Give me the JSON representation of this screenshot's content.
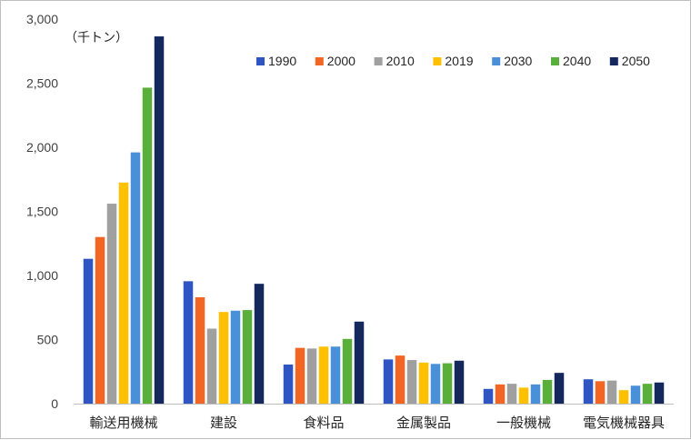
{
  "chart_data": {
    "type": "bar",
    "unit_label": "（千トン）",
    "categories": [
      "輸送用機械",
      "建設",
      "食料品",
      "金属製品",
      "一般機械",
      "電気機械器具"
    ],
    "series": [
      {
        "name": "1990",
        "color": "#2f55c2",
        "values": [
          1130,
          955,
          305,
          345,
          115,
          190
        ]
      },
      {
        "name": "2000",
        "color": "#f26522",
        "values": [
          1300,
          830,
          435,
          375,
          150,
          175
        ]
      },
      {
        "name": "2010",
        "color": "#a0a0a0",
        "values": [
          1560,
          585,
          430,
          340,
          155,
          180
        ]
      },
      {
        "name": "2019",
        "color": "#ffc000",
        "values": [
          1725,
          715,
          445,
          320,
          125,
          105
        ]
      },
      {
        "name": "2030",
        "color": "#4a90d9",
        "values": [
          1960,
          725,
          445,
          310,
          150,
          140
        ]
      },
      {
        "name": "2040",
        "color": "#5aae3a",
        "values": [
          2465,
          730,
          505,
          315,
          185,
          155
        ]
      },
      {
        "name": "2050",
        "color": "#14285e",
        "values": [
          2865,
          935,
          640,
          335,
          240,
          165
        ]
      }
    ],
    "ylim": [
      0,
      3000
    ],
    "yticks": [
      0,
      500,
      1000,
      1500,
      2000,
      2500,
      3000
    ],
    "ytick_labels": [
      "0",
      "500",
      "1,000",
      "1,500",
      "2,000",
      "2,500",
      "3,000"
    ],
    "grid": false,
    "legend_position": "top-right"
  }
}
